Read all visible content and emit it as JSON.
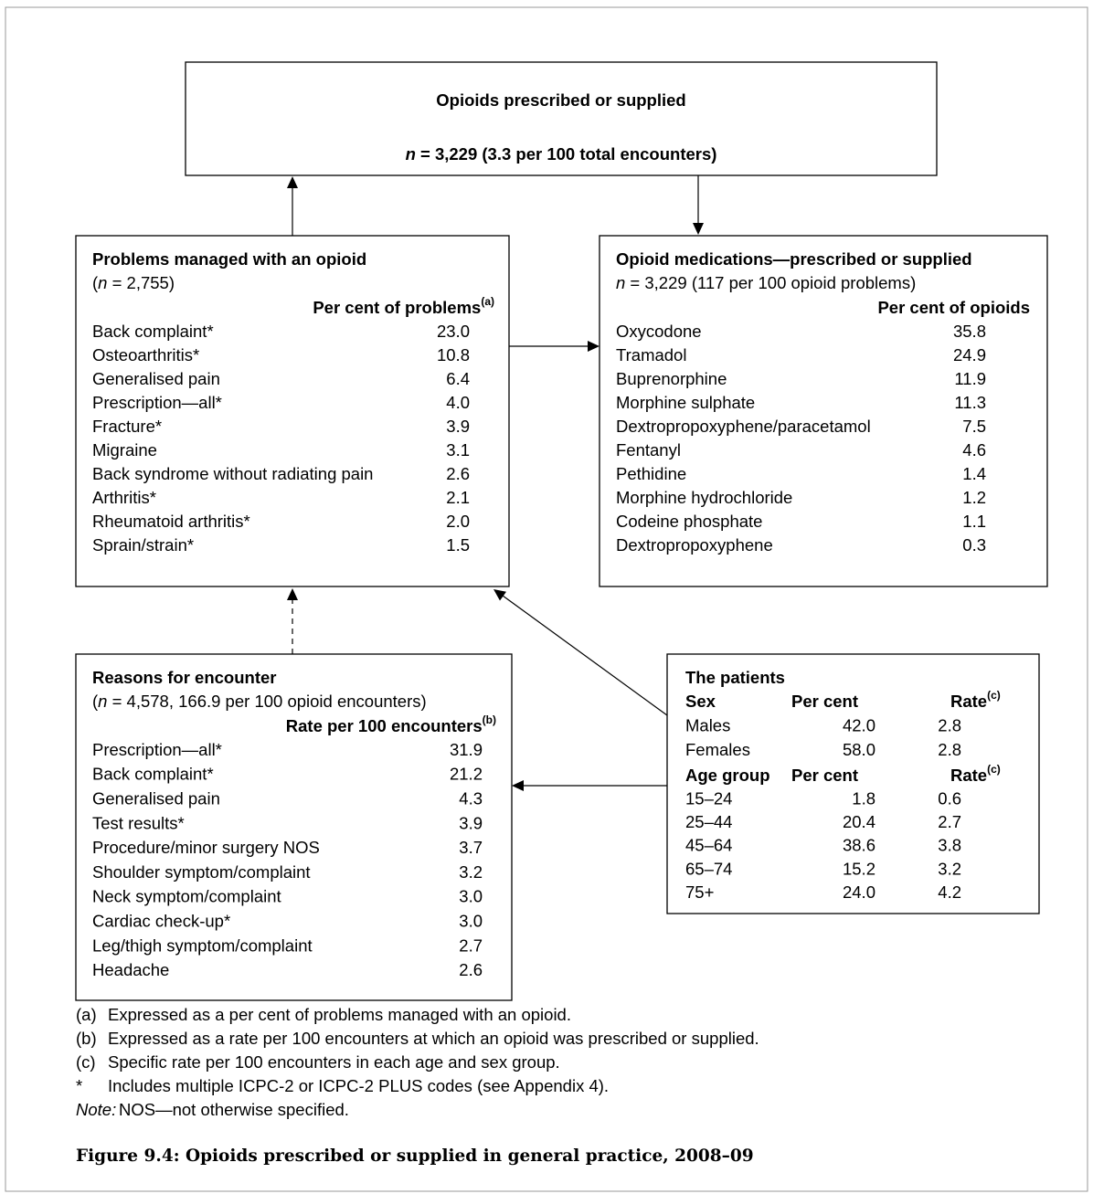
{
  "header": {
    "title": "Opioids prescribed or supplied",
    "subtitle": {
      "n": "n",
      "text": " = 3,229 (3.3 per 100 total encounters)"
    }
  },
  "problems": {
    "title": "Problems managed with an opioid",
    "count": {
      "open": "(",
      "n": "n",
      "text": " = 2,755)"
    },
    "column": {
      "text": "Per cent of problems",
      "note": "(a)"
    },
    "rows": [
      [
        "Back complaint*",
        "23.0"
      ],
      [
        "Osteoarthritis*",
        "10.8"
      ],
      [
        "Generalised pain",
        "6.4"
      ],
      [
        "Prescription—all*",
        "4.0"
      ],
      [
        "Fracture*",
        "3.9"
      ],
      [
        "Migraine",
        "3.1"
      ],
      [
        "Back syndrome without radiating pain",
        "2.6"
      ],
      [
        "Arthritis*",
        "2.1"
      ],
      [
        "Rheumatoid arthritis*",
        "2.0"
      ],
      [
        "Sprain/strain*",
        "1.5"
      ]
    ]
  },
  "opioids": {
    "title": "Opioid medications—prescribed or supplied",
    "count": {
      "open": "",
      "n": "n",
      "text": " = 3,229 (117 per 100 opioid problems)"
    },
    "column": {
      "text": "Per cent of opioids",
      "note": ""
    },
    "rows": [
      [
        "Oxycodone",
        "35.8"
      ],
      [
        "Tramadol",
        "24.9"
      ],
      [
        "Buprenorphine",
        "11.9"
      ],
      [
        "Morphine sulphate",
        "11.3"
      ],
      [
        "Dextropropoxyphene/paracetamol",
        "7.5"
      ],
      [
        "Fentanyl",
        "4.6"
      ],
      [
        "Pethidine",
        "1.4"
      ],
      [
        "Morphine hydrochloride",
        "1.2"
      ],
      [
        "Codeine phosphate",
        "1.1"
      ],
      [
        "Dextropropoxyphene",
        "0.3"
      ]
    ]
  },
  "reasons": {
    "title": "Reasons for encounter",
    "count": {
      "open": "(",
      "n": "n",
      "text": " = 4,578, 166.9 per 100 opioid encounters)"
    },
    "column": {
      "text": "Rate per 100 encounters",
      "note": "(b)"
    },
    "rows": [
      [
        "Prescription—all*",
        "31.9"
      ],
      [
        "Back complaint*",
        "21.2"
      ],
      [
        "Generalised pain",
        "4.3"
      ],
      [
        "Test results*",
        "3.9"
      ],
      [
        "Procedure/minor surgery NOS",
        "3.7"
      ],
      [
        "Shoulder symptom/complaint",
        "3.2"
      ],
      [
        "Neck symptom/complaint",
        "3.0"
      ],
      [
        "Cardiac check-up*",
        "3.0"
      ],
      [
        "Leg/thigh symptom/complaint",
        "2.7"
      ],
      [
        "Headache",
        "2.6"
      ]
    ]
  },
  "patients": {
    "title": "The patients",
    "sex": {
      "headers": [
        "Sex",
        "Per cent",
        "Rate"
      ],
      "rate_note": "(c)",
      "rows": [
        [
          "Males",
          "42.0",
          "2.8"
        ],
        [
          "Females",
          "58.0",
          "2.8"
        ]
      ]
    },
    "age": {
      "headers": [
        "Age group",
        "Per cent",
        "Rate"
      ],
      "rate_note": "(c)",
      "rows": [
        [
          "15–24",
          "1.8",
          "0.6"
        ],
        [
          "25–44",
          "20.4",
          "2.7"
        ],
        [
          "45–64",
          "38.6",
          "3.8"
        ],
        [
          "65–74",
          "15.2",
          "3.2"
        ],
        [
          "75+",
          "24.0",
          "4.2"
        ]
      ]
    }
  },
  "footnotes": [
    {
      "mark": "(a)",
      "text": "Expressed as a per cent of problems managed with an opioid."
    },
    {
      "mark": "(b)",
      "text": "Expressed as a rate per 100 encounters at which an opioid was prescribed or supplied."
    },
    {
      "mark": "(c)",
      "text": "Specific rate per 100 encounters in each age and sex group."
    },
    {
      "mark": "*",
      "text": "Includes multiple ICPC-2 or ICPC-2 PLUS codes (see Appendix 4)."
    }
  ],
  "note": {
    "label": "Note:",
    "text": "NOS—not otherwise specified."
  },
  "caption": "Figure 9.4: Opioids prescribed or supplied in general practice, 2008–09"
}
